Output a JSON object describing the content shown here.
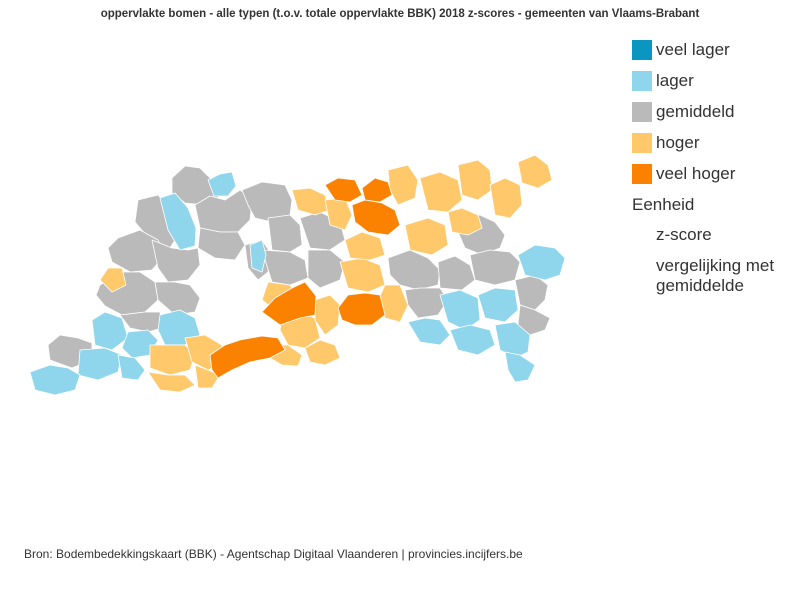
{
  "title": "oppervlakte bomen - alle typen (t.o.v. totale oppervlakte BBK) 2018 z-scores - gemeenten van Vlaams-Brabant",
  "legend": {
    "categories": [
      {
        "key": "veel_lager",
        "label": "veel lager",
        "color": "#0a96c0"
      },
      {
        "key": "lager",
        "label": "lager",
        "color": "#8fd6ec"
      },
      {
        "key": "gemiddeld",
        "label": "gemiddeld",
        "color": "#bababa"
      },
      {
        "key": "hoger",
        "label": "hoger",
        "color": "#ffc96b"
      },
      {
        "key": "veel_hoger",
        "label": "veel hoger",
        "color": "#fb8200"
      }
    ],
    "unit_title": "Eenheid",
    "unit_options": [
      "z-score",
      "vergelijking met gemiddelde"
    ]
  },
  "source": "Bron: Bodembedekkingskaart (BBK) - Agentschap Digitaal Vlaanderen | provincies.incijfers.be"
}
